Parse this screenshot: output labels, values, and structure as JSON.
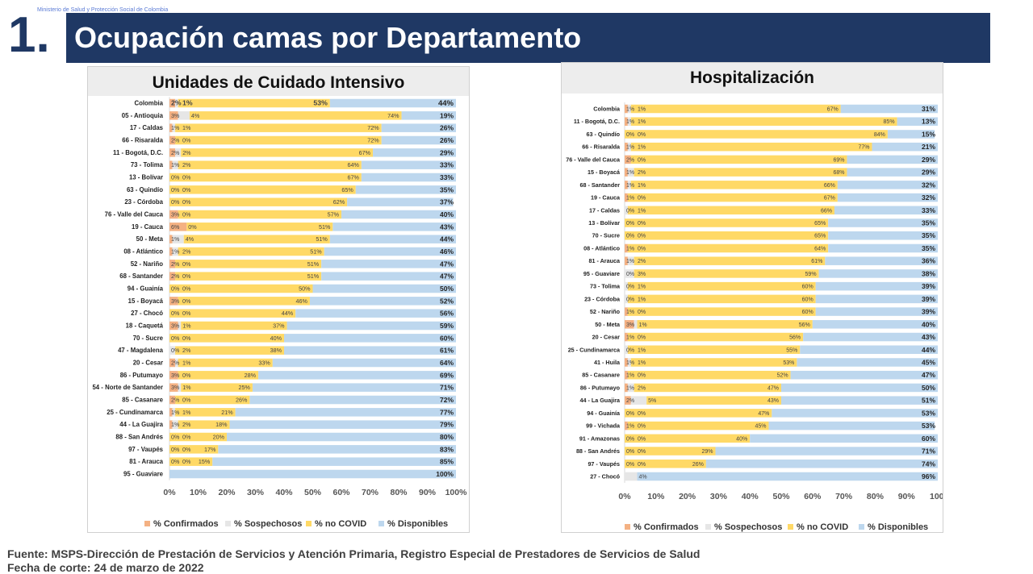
{
  "header": {
    "ministry": "Ministerio de Salud y Protección Social de Colombia",
    "number": "1.",
    "title": "Ocupación camas por Departamento"
  },
  "footer": {
    "source": "Fuente: MSPS-Dirección de Prestación de Servicios y Atención Primaria, Registro Especial de Prestadores de Servicios de Salud",
    "cutoff": "Fecha de corte: 24 de marzo de 2022"
  },
  "colors": {
    "confirmados": "#f4b183",
    "sospechosos": "#e6e6e6",
    "no_covid": "#ffd966",
    "disponibles": "#bdd7ee"
  },
  "chart_data": [
    {
      "type": "bar",
      "orientation": "horizontal",
      "stacked": true,
      "title": "Unidades de Cuidado Intensivo",
      "xlim": [
        0,
        100
      ],
      "xticks": [
        "0%",
        "10%",
        "20%",
        "30%",
        "40%",
        "50%",
        "60%",
        "70%",
        "80%",
        "90%",
        "100%"
      ],
      "legend": [
        "% Confirmados",
        "% Sospechosos",
        "% no COVID",
        "% Disponibles"
      ],
      "legend_position": "bottom",
      "rows": [
        {
          "label": "Colombia",
          "conf": 2,
          "sosp": 1,
          "nocovid": 53,
          "disp": 44,
          "bold": true
        },
        {
          "label": "05 - Antioquia",
          "conf": 3,
          "sosp": 4,
          "nocovid": 74,
          "disp": 19
        },
        {
          "label": "17 - Caldas",
          "conf": 1,
          "sosp": 1,
          "nocovid": 72,
          "disp": 26
        },
        {
          "label": "66 - Risaralda",
          "conf": 2,
          "sosp": 0,
          "nocovid": 72,
          "disp": 26
        },
        {
          "label": "11 - Bogotá, D.C.",
          "conf": 2,
          "sosp": 2,
          "nocovid": 67,
          "disp": 29
        },
        {
          "label": "73 - Tolima",
          "conf": 1,
          "sosp": 2,
          "nocovid": 64,
          "disp": 33
        },
        {
          "label": "13 - Bolívar",
          "conf": 0,
          "sosp": 0,
          "nocovid": 67,
          "disp": 33
        },
        {
          "label": "63 - Quindío",
          "conf": 0,
          "sosp": 0,
          "nocovid": 65,
          "disp": 35
        },
        {
          "label": "23 - Córdoba",
          "conf": 0,
          "sosp": 0,
          "nocovid": 62,
          "disp": 37
        },
        {
          "label": "76 - Valle del Cauca",
          "conf": 3,
          "sosp": 0,
          "nocovid": 57,
          "disp": 40
        },
        {
          "label": "19 - Cauca",
          "conf": 6,
          "sosp": 0,
          "nocovid": 51,
          "disp": 43
        },
        {
          "label": "50 - Meta",
          "conf": 1,
          "sosp": 4,
          "nocovid": 51,
          "disp": 44
        },
        {
          "label": "08 - Atlántico",
          "conf": 1,
          "sosp": 2,
          "nocovid": 51,
          "disp": 46
        },
        {
          "label": "52 - Nariño",
          "conf": 2,
          "sosp": 0,
          "nocovid": 51,
          "disp": 47
        },
        {
          "label": "68 - Santander",
          "conf": 2,
          "sosp": 0,
          "nocovid": 51,
          "disp": 47
        },
        {
          "label": "94 - Guainía",
          "conf": 0,
          "sosp": 0,
          "nocovid": 50,
          "disp": 50
        },
        {
          "label": "15 - Boyacá",
          "conf": 3,
          "sosp": 0,
          "nocovid": 46,
          "disp": 52
        },
        {
          "label": "27 - Chocó",
          "conf": 0,
          "sosp": 0,
          "nocovid": 44,
          "disp": 56
        },
        {
          "label": "18 - Caquetá",
          "conf": 3,
          "sosp": 1,
          "nocovid": 37,
          "disp": 59
        },
        {
          "label": "70 - Sucre",
          "conf": 0,
          "sosp": 0,
          "nocovid": 40,
          "disp": 60
        },
        {
          "label": "47 - Magdalena",
          "conf": 0,
          "sosp": 2,
          "nocovid": 38,
          "disp": 61
        },
        {
          "label": "20 - Cesar",
          "conf": 2,
          "sosp": 1,
          "nocovid": 33,
          "disp": 64
        },
        {
          "label": "86 - Putumayo",
          "conf": 3,
          "sosp": 0,
          "nocovid": 28,
          "disp": 69
        },
        {
          "label": "54 - Norte de Santander",
          "conf": 3,
          "sosp": 1,
          "nocovid": 25,
          "disp": 71
        },
        {
          "label": "85 - Casanare",
          "conf": 2,
          "sosp": 0,
          "nocovid": 26,
          "disp": 72
        },
        {
          "label": "25 - Cundinamarca",
          "conf": 1,
          "sosp": 1,
          "nocovid": 21,
          "disp": 77
        },
        {
          "label": "44 - La Guajira",
          "conf": 1,
          "sosp": 2,
          "nocovid": 18,
          "disp": 79
        },
        {
          "label": "88 - San Andrés",
          "conf": 0,
          "sosp": 0,
          "nocovid": 20,
          "disp": 80
        },
        {
          "label": "97 - Vaupés",
          "conf": 0,
          "sosp": 0,
          "nocovid": 17,
          "disp": 83
        },
        {
          "label": "81 - Arauca",
          "conf": 0,
          "sosp": 0,
          "nocovid": 15,
          "disp": 85
        },
        {
          "label": "95 - Guaviare",
          "conf": 0,
          "sosp": 0,
          "nocovid": 0,
          "disp": 100
        }
      ]
    },
    {
      "type": "bar",
      "orientation": "horizontal",
      "stacked": true,
      "title": "Hospitalización",
      "xlim": [
        0,
        100
      ],
      "xticks": [
        "0%",
        "10%",
        "20%",
        "30%",
        "40%",
        "50%",
        "60%",
        "70%",
        "80%",
        "90%",
        "100'"
      ],
      "legend": [
        "% Confirmados",
        "% Sospechosos",
        "% no COVID",
        "% Disponibles"
      ],
      "legend_position": "bottom",
      "rows": [
        {
          "label": "Colombia",
          "conf": 1,
          "sosp": 1,
          "nocovid": 67,
          "disp": 31
        },
        {
          "label": "11 - Bogotá, D.C.",
          "conf": 1,
          "sosp": 1,
          "nocovid": 85,
          "disp": 13
        },
        {
          "label": "63 - Quindío",
          "conf": 0,
          "sosp": 0,
          "nocovid": 84,
          "disp": 15
        },
        {
          "label": "66 - Risaralda",
          "conf": 1,
          "sosp": 1,
          "nocovid": 77,
          "disp": 21
        },
        {
          "label": "76 - Valle del Cauca",
          "conf": 2,
          "sosp": 0,
          "nocovid": 69,
          "disp": 29
        },
        {
          "label": "15 - Boyacá",
          "conf": 1,
          "sosp": 2,
          "nocovid": 68,
          "disp": 29
        },
        {
          "label": "68 - Santander",
          "conf": 1,
          "sosp": 1,
          "nocovid": 66,
          "disp": 32
        },
        {
          "label": "19 - Cauca",
          "conf": 1,
          "sosp": 0,
          "nocovid": 67,
          "disp": 32
        },
        {
          "label": "17 - Caldas",
          "conf": 0,
          "sosp": 1,
          "nocovid": 66,
          "disp": 33
        },
        {
          "label": "13 - Bolívar",
          "conf": 0,
          "sosp": 0,
          "nocovid": 65,
          "disp": 35
        },
        {
          "label": "70 - Sucre",
          "conf": 0,
          "sosp": 0,
          "nocovid": 65,
          "disp": 35
        },
        {
          "label": "08 - Atlántico",
          "conf": 1,
          "sosp": 0,
          "nocovid": 64,
          "disp": 35
        },
        {
          "label": "81 - Arauca",
          "conf": 1,
          "sosp": 2,
          "nocovid": 61,
          "disp": 36
        },
        {
          "label": "95 - Guaviare",
          "conf": 0,
          "sosp": 3,
          "nocovid": 59,
          "disp": 38
        },
        {
          "label": "73 - Tolima",
          "conf": 0,
          "sosp": 1,
          "nocovid": 60,
          "disp": 39
        },
        {
          "label": "23 - Córdoba",
          "conf": 0,
          "sosp": 1,
          "nocovid": 60,
          "disp": 39
        },
        {
          "label": "52 - Nariño",
          "conf": 1,
          "sosp": 0,
          "nocovid": 60,
          "disp": 39
        },
        {
          "label": "50 - Meta",
          "conf": 3,
          "sosp": 1,
          "nocovid": 56,
          "disp": 40
        },
        {
          "label": "20 - Cesar",
          "conf": 1,
          "sosp": 0,
          "nocovid": 56,
          "disp": 43
        },
        {
          "label": "25 - Cundinamarca",
          "conf": 0,
          "sosp": 1,
          "nocovid": 55,
          "disp": 44
        },
        {
          "label": "41 - Huila",
          "conf": 1,
          "sosp": 1,
          "nocovid": 53,
          "disp": 45
        },
        {
          "label": "85 - Casanare",
          "conf": 1,
          "sosp": 0,
          "nocovid": 52,
          "disp": 47
        },
        {
          "label": "86 - Putumayo",
          "conf": 1,
          "sosp": 2,
          "nocovid": 47,
          "disp": 50
        },
        {
          "label": "44 - La Guajira",
          "conf": 2,
          "sosp": 5,
          "nocovid": 43,
          "disp": 51
        },
        {
          "label": "94 - Guainía",
          "conf": 0,
          "sosp": 0,
          "nocovid": 47,
          "disp": 53
        },
        {
          "label": "99 - Vichada",
          "conf": 1,
          "sosp": 0,
          "nocovid": 45,
          "disp": 53
        },
        {
          "label": "91 - Amazonas",
          "conf": 0,
          "sosp": 0,
          "nocovid": 40,
          "disp": 60
        },
        {
          "label": "88 - San Andrés",
          "conf": 0,
          "sosp": 0,
          "nocovid": 29,
          "disp": 71
        },
        {
          "label": "97 - Vaupés",
          "conf": 0,
          "sosp": 0,
          "nocovid": 26,
          "disp": 74
        },
        {
          "label": "27 - Chocó",
          "conf": 0,
          "sosp": 4,
          "nocovid": 0,
          "disp": 96
        }
      ]
    }
  ]
}
